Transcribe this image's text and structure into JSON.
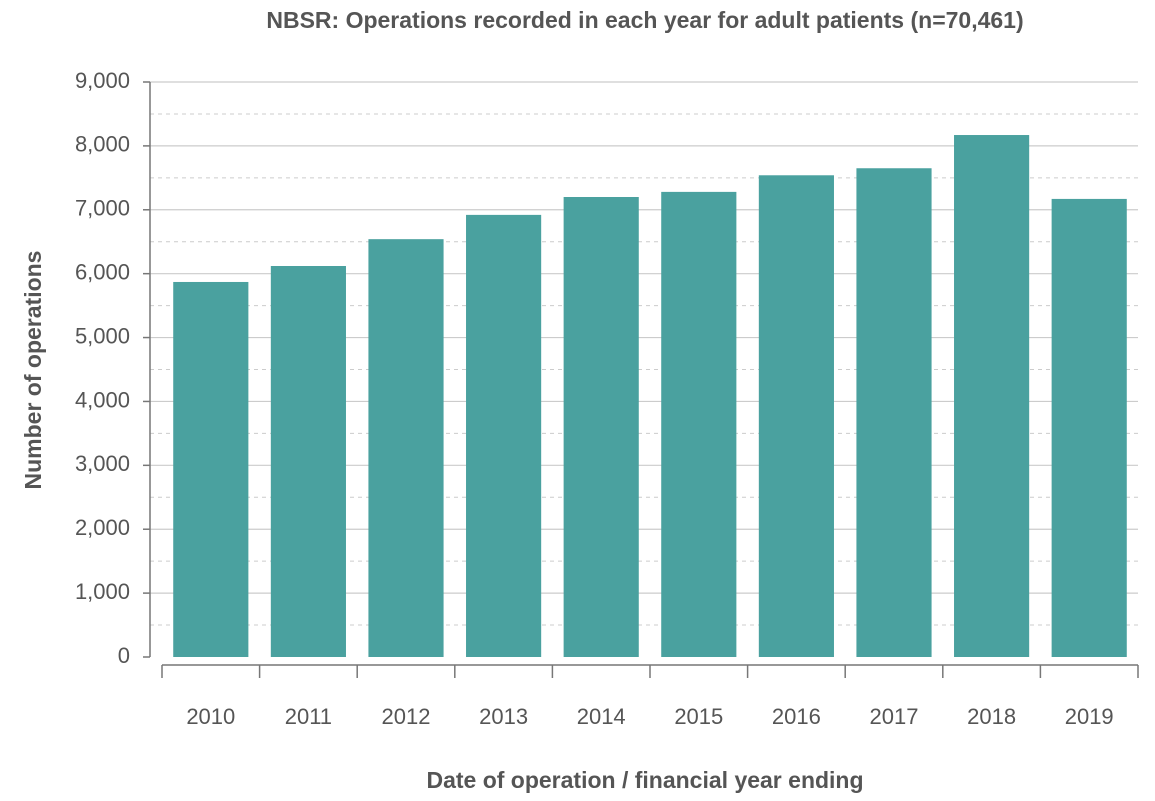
{
  "chart_data": {
    "type": "bar",
    "title": "NBSR: Operations recorded in each year for adult patients (n=70,461)",
    "x_label": "Date of operation / financial year ending",
    "y_label": "Number of operations",
    "categories": [
      "2010",
      "2011",
      "2012",
      "2013",
      "2014",
      "2015",
      "2016",
      "2017",
      "2018",
      "2019"
    ],
    "values": [
      5870,
      6120,
      6540,
      6920,
      7200,
      7280,
      7540,
      7650,
      8170,
      7170
    ],
    "color": "#4aa19f",
    "ylim": [
      0,
      9000
    ],
    "yticks": [
      0,
      {
        "value": 1000,
        "label": "1,000"
      },
      {
        "value": 2000,
        "label": "2,000"
      },
      {
        "value": 3000,
        "label": "3,000"
      },
      {
        "value": 4000,
        "label": "4,000"
      },
      {
        "value": 5000,
        "label": "5,000"
      },
      {
        "value": 6000,
        "label": "6,000"
      },
      {
        "value": 7000,
        "label": "7,000"
      },
      {
        "value": 8000,
        "label": "8,000"
      },
      {
        "value": 9000,
        "label": "9,000"
      }
    ],
    "grid": true
  }
}
